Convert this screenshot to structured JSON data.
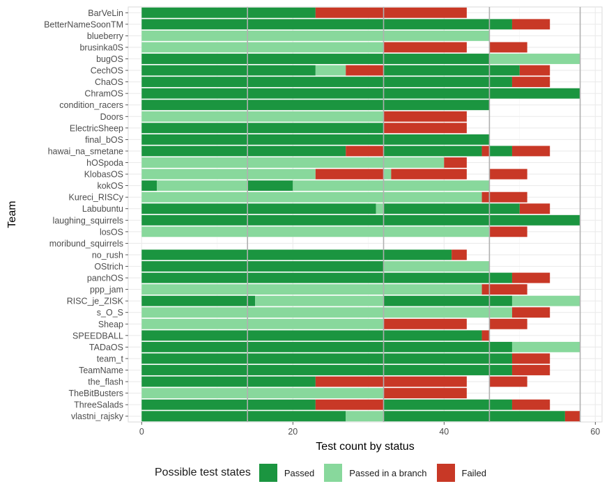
{
  "chart_data": {
    "type": "bar",
    "orientation": "horizontal",
    "stacked": true,
    "title": "",
    "xlabel": "Test count by status",
    "ylabel": "Team",
    "xlim": [
      -2,
      61
    ],
    "x_ticks": [
      0,
      20,
      40,
      60
    ],
    "grid": true,
    "reference_lines_x": [
      14,
      32,
      46,
      58
    ],
    "legend": {
      "title": "Possible test states",
      "position": "bottom",
      "entries": [
        {
          "key": "P",
          "label": "Passed",
          "color": "#1b9540"
        },
        {
          "key": "B",
          "label": "Passed in a branch",
          "color": "#88d89c"
        },
        {
          "key": "F",
          "label": "Failed",
          "color": "#c83826"
        }
      ]
    },
    "categories": [
      "BarVeLin",
      "BetterNameSoonTM",
      "blueberry",
      "brusinka0S",
      "bugOS",
      "CechOS",
      "ChaOS",
      "ChramOS",
      "condition_racers",
      "Doors",
      "ElectricSheep",
      "final_bOS",
      "hawai_na_smetane",
      "hOSpoda",
      "KlobasOS",
      "kokOS",
      "Kureci_RISCy",
      "Labubuntu",
      "laughing_squirrels",
      "losOS",
      "moribund_squirrels",
      "no_rush",
      "OStrich",
      "panchOS",
      "ppp_jam",
      "RISC_je_ZISK",
      "s_O_S",
      "Sheap",
      "SPEEDBALL",
      "TADaOS",
      "team_t",
      "TeamName",
      "the_flash",
      "TheBitBusters",
      "ThreeSalads",
      "vlastni_rajsky"
    ],
    "segments": [
      [
        [
          "P",
          0,
          23
        ],
        [
          "F",
          23,
          32
        ],
        [
          "F",
          32,
          43
        ]
      ],
      [
        [
          "P",
          0,
          49
        ],
        [
          "F",
          49,
          54
        ]
      ],
      [
        [
          "B",
          0,
          46
        ]
      ],
      [
        [
          "B",
          0,
          32
        ],
        [
          "F",
          32,
          43
        ],
        [
          "F",
          46,
          51
        ]
      ],
      [
        [
          "P",
          0,
          46
        ],
        [
          "B",
          46,
          58
        ]
      ],
      [
        [
          "P",
          0,
          23
        ],
        [
          "B",
          23,
          27
        ],
        [
          "F",
          27,
          32
        ],
        [
          "P",
          32,
          50
        ],
        [
          "F",
          50,
          54
        ]
      ],
      [
        [
          "P",
          0,
          49
        ],
        [
          "F",
          49,
          54
        ]
      ],
      [
        [
          "P",
          0,
          58
        ]
      ],
      [
        [
          "P",
          0,
          46
        ]
      ],
      [
        [
          "B",
          0,
          32
        ],
        [
          "F",
          32,
          43
        ]
      ],
      [
        [
          "P",
          0,
          32
        ],
        [
          "F",
          32,
          43
        ]
      ],
      [
        [
          "P",
          0,
          46
        ]
      ],
      [
        [
          "P",
          0,
          27
        ],
        [
          "F",
          27,
          32
        ],
        [
          "P",
          32,
          45
        ],
        [
          "F",
          45,
          46
        ],
        [
          "P",
          46,
          49
        ],
        [
          "F",
          49,
          54
        ]
      ],
      [
        [
          "B",
          0,
          40
        ],
        [
          "F",
          40,
          43
        ]
      ],
      [
        [
          "B",
          0,
          23
        ],
        [
          "F",
          23,
          32
        ],
        [
          "B",
          32,
          33
        ],
        [
          "F",
          33,
          43
        ],
        [
          "F",
          46,
          51
        ]
      ],
      [
        [
          "P",
          0,
          2
        ],
        [
          "B",
          2,
          14
        ],
        [
          "P",
          14,
          20
        ],
        [
          "B",
          20,
          46
        ]
      ],
      [
        [
          "B",
          0,
          45
        ],
        [
          "F",
          45,
          46
        ],
        [
          "F",
          46,
          51
        ]
      ],
      [
        [
          "P",
          0,
          31
        ],
        [
          "B",
          31,
          32
        ],
        [
          "P",
          32,
          50
        ],
        [
          "F",
          50,
          54
        ]
      ],
      [
        [
          "P",
          0,
          58
        ]
      ],
      [
        [
          "B",
          0,
          46
        ],
        [
          "F",
          46,
          51
        ]
      ],
      [],
      [
        [
          "P",
          0,
          41
        ],
        [
          "F",
          41,
          43
        ]
      ],
      [
        [
          "P",
          0,
          32
        ],
        [
          "B",
          32,
          46
        ]
      ],
      [
        [
          "P",
          0,
          49
        ],
        [
          "F",
          49,
          54
        ]
      ],
      [
        [
          "B",
          0,
          45
        ],
        [
          "F",
          45,
          46
        ],
        [
          "F",
          46,
          51
        ]
      ],
      [
        [
          "P",
          0,
          15
        ],
        [
          "B",
          15,
          32
        ],
        [
          "P",
          32,
          49
        ],
        [
          "B",
          49,
          58
        ]
      ],
      [
        [
          "B",
          0,
          49
        ],
        [
          "F",
          49,
          54
        ]
      ],
      [
        [
          "B",
          0,
          32
        ],
        [
          "F",
          32,
          43
        ],
        [
          "F",
          46,
          51
        ]
      ],
      [
        [
          "P",
          0,
          45
        ],
        [
          "F",
          45,
          46
        ]
      ],
      [
        [
          "P",
          0,
          49
        ],
        [
          "B",
          49,
          58
        ]
      ],
      [
        [
          "P",
          0,
          49
        ],
        [
          "F",
          49,
          54
        ]
      ],
      [
        [
          "P",
          0,
          49
        ],
        [
          "F",
          49,
          54
        ]
      ],
      [
        [
          "P",
          0,
          23
        ],
        [
          "F",
          23,
          32
        ],
        [
          "F",
          32,
          43
        ],
        [
          "F",
          46,
          51
        ]
      ],
      [
        [
          "B",
          0,
          32
        ],
        [
          "F",
          32,
          43
        ]
      ],
      [
        [
          "P",
          0,
          23
        ],
        [
          "F",
          23,
          32
        ],
        [
          "P",
          32,
          49
        ],
        [
          "F",
          49,
          54
        ]
      ],
      [
        [
          "P",
          0,
          27
        ],
        [
          "B",
          27,
          32
        ],
        [
          "P",
          32,
          56
        ],
        [
          "F",
          56,
          58
        ]
      ]
    ]
  }
}
